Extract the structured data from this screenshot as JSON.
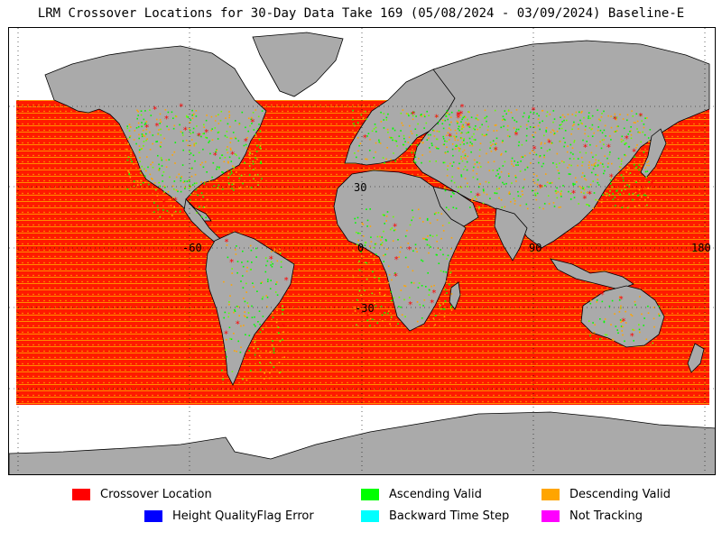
{
  "title": "LRM Crossover Locations for 30-Day Data Take 169 (05/08/2024 - 03/09/2024) Baseline-E",
  "map": {
    "ocean_color": "#ffffff",
    "land_color": "#aaaaaa",
    "coast_color": "#000000",
    "grid_labels": {
      "lat_30": "30",
      "lon_0": "0",
      "lat_m30": "-30",
      "lon_m60": "-60",
      "lon_90": "90",
      "lon_180": "180"
    }
  },
  "legend": [
    {
      "label": "Crossover Location",
      "color": "#ff0000"
    },
    {
      "label": "Ascending Valid",
      "color": "#00ff00"
    },
    {
      "label": "Descending Valid",
      "color": "#ffa500"
    },
    {
      "label": "Height QualityFlag Error",
      "color": "#0000ff"
    },
    {
      "label": "Backward Time Step",
      "color": "#00ffff"
    },
    {
      "label": "Not Tracking",
      "color": "#ff00ff"
    }
  ]
}
